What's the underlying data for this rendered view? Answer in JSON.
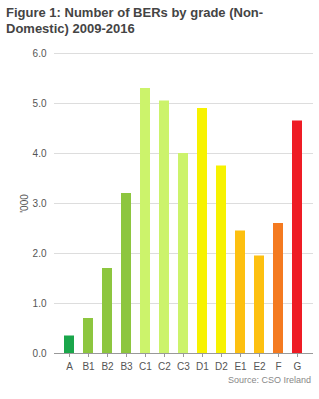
{
  "chart_data": {
    "type": "bar",
    "title": "Figure 1: Number of BERs by grade (Non-Domestic) 2009-2016",
    "y_label": "'000",
    "source": "Source: CSO Ireland",
    "categories": [
      "A",
      "B1",
      "B2",
      "B3",
      "C1",
      "C2",
      "C3",
      "D1",
      "D2",
      "E1",
      "E2",
      "F",
      "G"
    ],
    "values": [
      0.35,
      0.7,
      1.7,
      3.2,
      5.3,
      5.05,
      4.0,
      4.9,
      3.75,
      2.45,
      1.95,
      2.6,
      4.65
    ],
    "colors": [
      "#1aa64b",
      "#8dc63f",
      "#8dc63f",
      "#8dc63f",
      "#ccf36b",
      "#ccf36b",
      "#ccf36b",
      "#f7f200",
      "#f7f200",
      "#fdc010",
      "#fdc010",
      "#f47a20",
      "#ee1c25"
    ],
    "ylim": [
      0,
      6
    ],
    "yticks": [
      0,
      1,
      2,
      3,
      4,
      5,
      6
    ],
    "grid": true
  }
}
